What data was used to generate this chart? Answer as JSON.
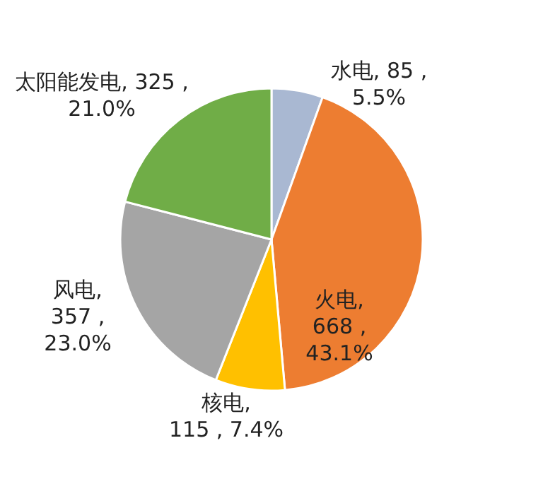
{
  "chart_data": {
    "type": "pie",
    "categories": [
      "水电",
      "火电",
      "核电",
      "风电",
      "太阳能发电"
    ],
    "values": [
      85,
      668,
      115,
      357,
      325
    ],
    "colors": [
      "#a9b8d2",
      "#ed7d31",
      "#ffc000",
      "#a5a5a5",
      "#70ad47"
    ],
    "value_labels": [
      ", 85 ,\n5.5%",
      ",\n668 ,\n43.1%",
      ",\n115 , 7.4%",
      ",\n357 ,\n23.0%",
      ", 325 ,\n21.0%"
    ]
  }
}
